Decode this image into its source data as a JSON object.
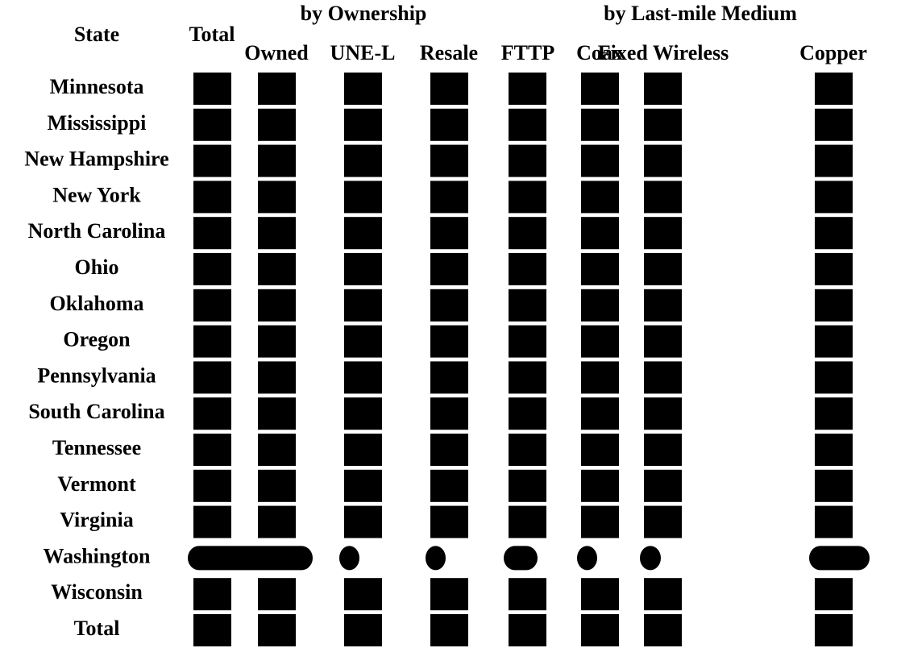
{
  "header": {
    "state": "State",
    "total": "Total",
    "groups": [
      "by Ownership",
      "by Last-mile Medium"
    ],
    "columns": [
      "Owned",
      "UNE-L",
      "Resale",
      "FTTP",
      "Coax",
      "Fixed Wireless",
      "Copper"
    ]
  },
  "rows": [
    "Minnesota",
    "Mississippi",
    "New Hampshire",
    "New York",
    "North Carolina",
    "Ohio",
    "Oklahoma",
    "Oregon",
    "Pennsylvania",
    "South Carolina",
    "Tennessee",
    "Vermont",
    "Virginia",
    "Washington",
    "Wisconsin",
    "Total"
  ]
}
